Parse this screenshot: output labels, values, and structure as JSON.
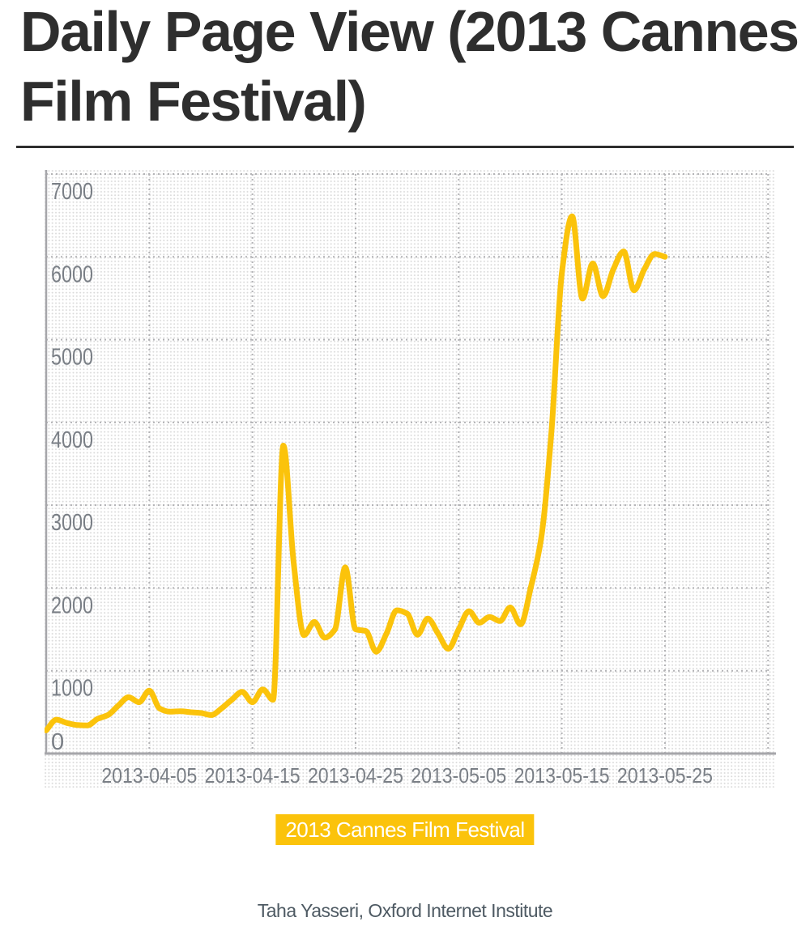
{
  "header": {
    "title_line1": "Daily Page View (2013 Cannes",
    "title_line2": "Film Festival)"
  },
  "legend": {
    "label": "2013 Cannes Film Festival"
  },
  "footer": {
    "text": "Taha Yasseri, Oxford Internet Institute"
  },
  "colors": {
    "accent_yellow": "#FBC30B",
    "title_text": "#2E2E2E",
    "axis_text": "#7A7F86",
    "grid_line": "#B3B3B6",
    "axis_line": "#A6A6AA",
    "dot_grid": "#DADADA",
    "legend_text": "#FFFFFF",
    "footer_text": "#4E5A63",
    "background": "#FFFFFF"
  },
  "chart_data": {
    "type": "line",
    "title": "Daily Page View (2013 Cannes Film Festival)",
    "xlabel": "",
    "ylabel": "",
    "series_name": "2013 Cannes Film Festival",
    "grid": true,
    "legend_position": "bottom-center",
    "x_start_date": "2013-03-26",
    "x_end_date": "2013-06-04",
    "x_axis_total_days": 70,
    "x_tick_labels": [
      "2013-04-05",
      "2013-04-15",
      "2013-04-25",
      "2013-05-05",
      "2013-05-15",
      "2013-05-25"
    ],
    "x_tick_days": [
      10,
      20,
      30,
      40,
      50,
      60
    ],
    "y_ticks": [
      0,
      1000,
      2000,
      3000,
      4000,
      5000,
      6000,
      7000
    ],
    "ylim": [
      0,
      7050
    ],
    "dates": [
      "2013-03-26",
      "2013-03-27",
      "2013-03-28",
      "2013-03-29",
      "2013-03-30",
      "2013-03-31",
      "2013-04-01",
      "2013-04-02",
      "2013-04-03",
      "2013-04-04",
      "2013-04-05",
      "2013-04-06",
      "2013-04-07",
      "2013-04-08",
      "2013-04-09",
      "2013-04-10",
      "2013-04-11",
      "2013-04-12",
      "2013-04-13",
      "2013-04-14",
      "2013-04-15",
      "2013-04-16",
      "2013-04-17",
      "2013-04-18",
      "2013-04-19",
      "2013-04-20",
      "2013-04-21",
      "2013-04-22",
      "2013-04-23",
      "2013-04-24",
      "2013-04-25",
      "2013-04-26",
      "2013-04-27",
      "2013-04-28",
      "2013-04-29",
      "2013-04-30",
      "2013-05-01",
      "2013-05-02",
      "2013-05-03",
      "2013-05-04",
      "2013-05-05",
      "2013-05-06",
      "2013-05-07",
      "2013-05-08",
      "2013-05-09",
      "2013-05-10",
      "2013-05-11",
      "2013-05-12",
      "2013-05-13",
      "2013-05-14",
      "2013-05-15",
      "2013-05-16",
      "2013-05-17",
      "2013-05-18",
      "2013-05-19",
      "2013-05-20",
      "2013-05-21",
      "2013-05-22",
      "2013-05-23",
      "2013-05-24",
      "2013-05-25"
    ],
    "values": [
      280,
      410,
      370,
      345,
      340,
      420,
      465,
      580,
      680,
      620,
      760,
      545,
      505,
      510,
      500,
      490,
      465,
      545,
      650,
      745,
      620,
      775,
      650,
      3720,
      2300,
      1430,
      1590,
      1400,
      1500,
      2250,
      1500,
      1480,
      1230,
      1450,
      1730,
      1690,
      1435,
      1630,
      1450,
      1265,
      1500,
      1720,
      1580,
      1650,
      1600,
      1765,
      1560,
      2010,
      2600,
      3900,
      5800,
      6490,
      5495,
      5920,
      5525,
      5850,
      6065,
      5595,
      5850,
      6035,
      6000
    ]
  }
}
